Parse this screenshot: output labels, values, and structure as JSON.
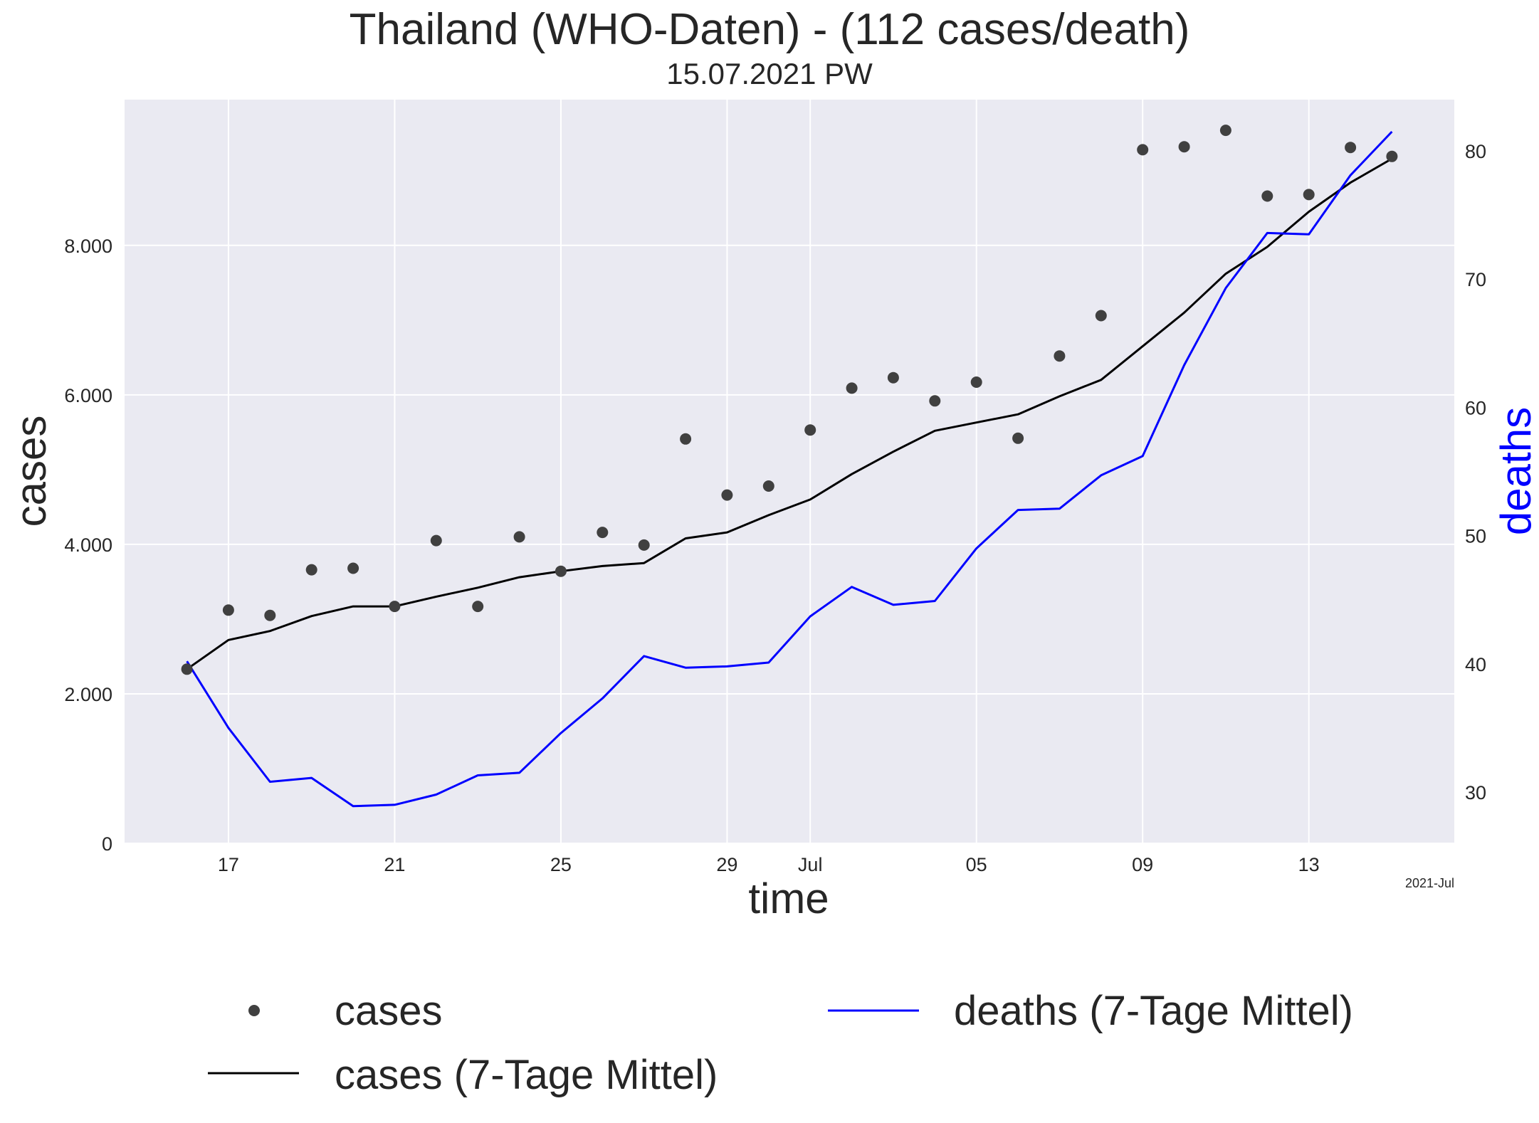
{
  "chart_data": {
    "type": "line",
    "title": "Thailand (WHO-Daten) - (112 cases/death)",
    "subtitle": "15.07.2021 PW",
    "xlabel": "time",
    "ylabel": "cases",
    "y2label": "deaths",
    "x_offset_label": "2021-Jul",
    "x_dates": [
      "2021-06-16",
      "2021-06-17",
      "2021-06-18",
      "2021-06-19",
      "2021-06-20",
      "2021-06-21",
      "2021-06-22",
      "2021-06-23",
      "2021-06-24",
      "2021-06-25",
      "2021-06-26",
      "2021-06-27",
      "2021-06-28",
      "2021-06-29",
      "2021-06-30",
      "2021-07-01",
      "2021-07-02",
      "2021-07-03",
      "2021-07-04",
      "2021-07-05",
      "2021-07-06",
      "2021-07-07",
      "2021-07-08",
      "2021-07-09",
      "2021-07-10",
      "2021-07-11",
      "2021-07-12",
      "2021-07-13",
      "2021-07-14",
      "2021-07-15"
    ],
    "x_ticks": [
      "17",
      "21",
      "25",
      "29",
      "Jul",
      "05",
      "09",
      "13"
    ],
    "x_tick_dates": [
      "2021-06-17",
      "2021-06-21",
      "2021-06-25",
      "2021-06-29",
      "2021-07-01",
      "2021-07-05",
      "2021-07-09",
      "2021-07-13"
    ],
    "xlim": [
      "2021-06-14 12:00",
      "2021-07-16 12:00"
    ],
    "ylim": [
      0,
      9950
    ],
    "y_ticks": [
      "0",
      "2.000",
      "4.000",
      "6.000",
      "8.000"
    ],
    "y_tick_values": [
      0,
      2000,
      4000,
      6000,
      8000
    ],
    "y2lim": [
      26.0,
      84.0
    ],
    "y2_ticks": [
      "30",
      "40",
      "50",
      "60",
      "70",
      "80"
    ],
    "y2_tick_values": [
      30,
      40,
      50,
      60,
      70,
      80
    ],
    "grid": true,
    "legend_position": "bottom",
    "series": [
      {
        "name": "cases",
        "style": "points",
        "axis": "left",
        "color": "#404040",
        "values": [
          2330,
          3120,
          3050,
          3660,
          3680,
          3170,
          4050,
          3170,
          4100,
          3640,
          4160,
          3990,
          5410,
          4660,
          4780,
          5530,
          6090,
          6230,
          5920,
          6170,
          5420,
          6520,
          7060,
          9280,
          9320,
          9540,
          8660,
          8680,
          9310,
          9190
        ]
      },
      {
        "name": "cases (7-Tage Mittel)",
        "style": "line",
        "axis": "left",
        "color": "#000000",
        "values": [
          2330,
          2720,
          2840,
          3040,
          3170,
          3170,
          3300,
          3420,
          3560,
          3640,
          3710,
          3750,
          4080,
          4160,
          4390,
          4600,
          4940,
          5240,
          5520,
          5630,
          5740,
          5980,
          6200,
          6650,
          7100,
          7620,
          7980,
          8450,
          8840,
          9160
        ]
      },
      {
        "name": "deaths (7-Tage Mittel)",
        "style": "line",
        "axis": "right",
        "color": "#0000ff",
        "values": [
          40.2,
          35.0,
          30.8,
          31.1,
          28.9,
          29.0,
          29.8,
          31.3,
          31.5,
          34.6,
          37.3,
          40.6,
          39.7,
          39.8,
          40.1,
          43.7,
          46.0,
          44.6,
          44.9,
          49.0,
          52.0,
          52.1,
          54.7,
          56.2,
          63.3,
          69.3,
          73.6,
          73.5,
          78.1,
          81.5
        ]
      }
    ]
  }
}
